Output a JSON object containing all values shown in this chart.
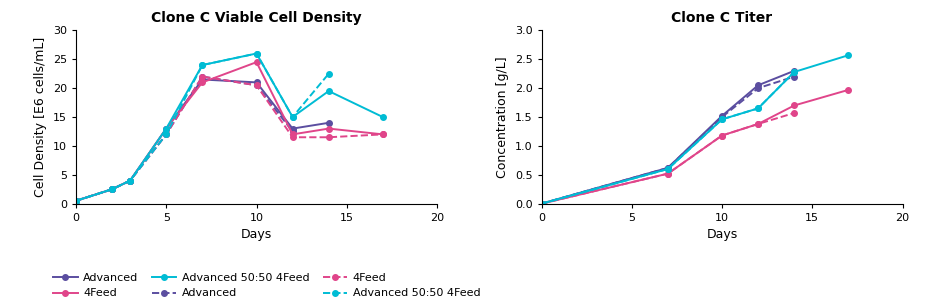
{
  "title_left": "Clone C Viable Cell Density",
  "title_right": "Clone C Titer",
  "xlabel": "Days",
  "ylabel_left": "Cell Density [E6 cells/mL]",
  "ylabel_right": "Concentration [g/L]",
  "vcd": {
    "advanced_solid": {
      "x": [
        0,
        2,
        3,
        5,
        7,
        10,
        12,
        14,
        17
      ],
      "y": [
        0.5,
        2.5,
        4.0,
        13.0,
        21.5,
        21.0,
        13.0,
        14.0,
        null
      ],
      "color": "#5b4ea0",
      "ls": "solid"
    },
    "advanced_dashed": {
      "x": [
        0,
        2,
        3,
        5,
        7,
        10,
        12
      ],
      "y": [
        0.5,
        2.5,
        4.0,
        12.0,
        22.0,
        20.5,
        12.5
      ],
      "color": "#5b4ea0",
      "ls": "dashed"
    },
    "feed4_solid": {
      "x": [
        0,
        2,
        3,
        5,
        7,
        10,
        12,
        14,
        17
      ],
      "y": [
        0.5,
        2.5,
        4.0,
        13.0,
        21.0,
        24.5,
        12.0,
        13.0,
        12.0
      ],
      "color": "#e0458a",
      "ls": "solid"
    },
    "feed4_dashed": {
      "x": [
        0,
        2,
        3,
        5,
        7,
        10,
        12,
        14,
        17
      ],
      "y": [
        0.5,
        2.5,
        4.0,
        12.0,
        22.0,
        20.5,
        11.5,
        11.5,
        12.0
      ],
      "color": "#e0458a",
      "ls": "dashed"
    },
    "adv50_solid": {
      "x": [
        0,
        2,
        3,
        5,
        7,
        10,
        12,
        14,
        17
      ],
      "y": [
        0.5,
        2.5,
        4.0,
        13.0,
        24.0,
        26.0,
        15.0,
        19.5,
        15.0
      ],
      "color": "#00bcd4",
      "ls": "solid"
    },
    "adv50_dashed": {
      "x": [
        0,
        2,
        3,
        5,
        7,
        10,
        12,
        14
      ],
      "y": [
        0.5,
        2.5,
        4.0,
        12.0,
        24.0,
        26.0,
        15.0,
        22.5
      ],
      "color": "#00bcd4",
      "ls": "dashed"
    }
  },
  "titer": {
    "advanced_solid": {
      "x": [
        0,
        7,
        10,
        12,
        14
      ],
      "y": [
        0.0,
        0.62,
        1.52,
        2.05,
        2.3
      ],
      "color": "#5b4ea0",
      "ls": "solid"
    },
    "advanced_dashed": {
      "x": [
        0,
        7,
        10,
        12,
        14
      ],
      "y": [
        0.0,
        0.62,
        1.5,
        2.0,
        2.2
      ],
      "color": "#5b4ea0",
      "ls": "dashed"
    },
    "feed4_solid": {
      "x": [
        0,
        7,
        10,
        12,
        14,
        17
      ],
      "y": [
        0.0,
        0.52,
        1.18,
        1.38,
        1.7,
        1.97
      ],
      "color": "#e0458a",
      "ls": "solid"
    },
    "feed4_dashed": {
      "x": [
        0,
        7,
        10,
        12,
        14
      ],
      "y": [
        0.0,
        0.52,
        1.18,
        1.38,
        1.57
      ],
      "color": "#e0458a",
      "ls": "dashed"
    },
    "adv50_solid": {
      "x": [
        0,
        7,
        10,
        12,
        14,
        17
      ],
      "y": [
        0.0,
        0.6,
        1.46,
        1.65,
        2.28,
        2.57
      ],
      "color": "#00bcd4",
      "ls": "solid"
    },
    "adv50_dashed": {
      "x": [
        0,
        7,
        10,
        12,
        14
      ],
      "y": [
        0.0,
        0.6,
        1.46,
        1.65,
        2.28
      ],
      "color": "#00bcd4",
      "ls": "dashed"
    }
  },
  "ylim_left": [
    0,
    30
  ],
  "ylim_right": [
    0,
    3.0
  ],
  "xlim": [
    0,
    20
  ],
  "yticks_left": [
    0,
    5,
    10,
    15,
    20,
    25,
    30
  ],
  "yticks_right": [
    0.0,
    0.5,
    1.0,
    1.5,
    2.0,
    2.5,
    3.0
  ],
  "xticks": [
    0,
    5,
    10,
    15,
    20
  ],
  "legend_row1": [
    {
      "label": "Advanced",
      "color": "#5b4ea0",
      "ls": "solid",
      "marker": "o"
    },
    {
      "label": "4Feed",
      "color": "#e0458a",
      "ls": "solid",
      "marker": "o"
    },
    {
      "label": "Advanced 50:50 4Feed",
      "color": "#00bcd4",
      "ls": "solid",
      "marker": "o"
    }
  ],
  "legend_row2": [
    {
      "label": "Advanced",
      "color": "#5b4ea0",
      "ls": "dashed",
      "marker": "o"
    },
    {
      "label": "4Feed",
      "color": "#e0458a",
      "ls": "dashed",
      "marker": "o"
    },
    {
      "label": "Advanced 50:50 4Feed",
      "color": "#00bcd4",
      "ls": "dashed",
      "marker": "o"
    }
  ],
  "bg_color": "#ffffff",
  "title_fontsize": 10,
  "label_fontsize": 9,
  "tick_fontsize": 8,
  "legend_fontsize": 8,
  "marker_size": 4,
  "lw": 1.4
}
